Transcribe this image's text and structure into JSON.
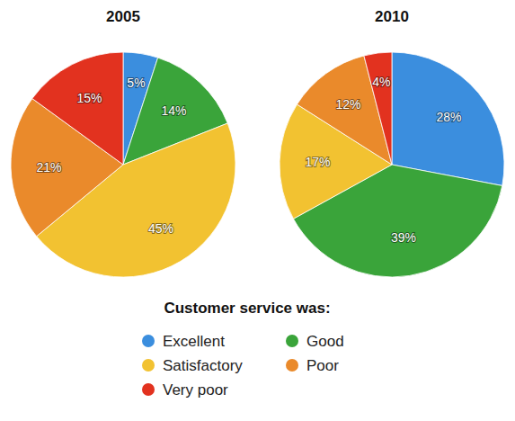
{
  "chart_data": {
    "type": "pie",
    "categories": [
      "Excellent",
      "Good",
      "Satisfactory",
      "Poor",
      "Very poor"
    ],
    "colors": [
      "#3b8ede",
      "#3aa43a",
      "#f2c231",
      "#ea8a2b",
      "#e2321f"
    ],
    "series": [
      {
        "name": "2005",
        "values": [
          5,
          14,
          45,
          21,
          15
        ],
        "value_labels": [
          "5%",
          "14%",
          "45%",
          "21%",
          "15%"
        ]
      },
      {
        "name": "2010",
        "values": [
          28,
          39,
          17,
          12,
          4
        ],
        "value_labels": [
          "28%",
          "39%",
          "17%",
          "12%",
          "4%"
        ]
      }
    ],
    "data_labels": true,
    "legend": "bottom",
    "legend_title": "Customer service was:"
  }
}
